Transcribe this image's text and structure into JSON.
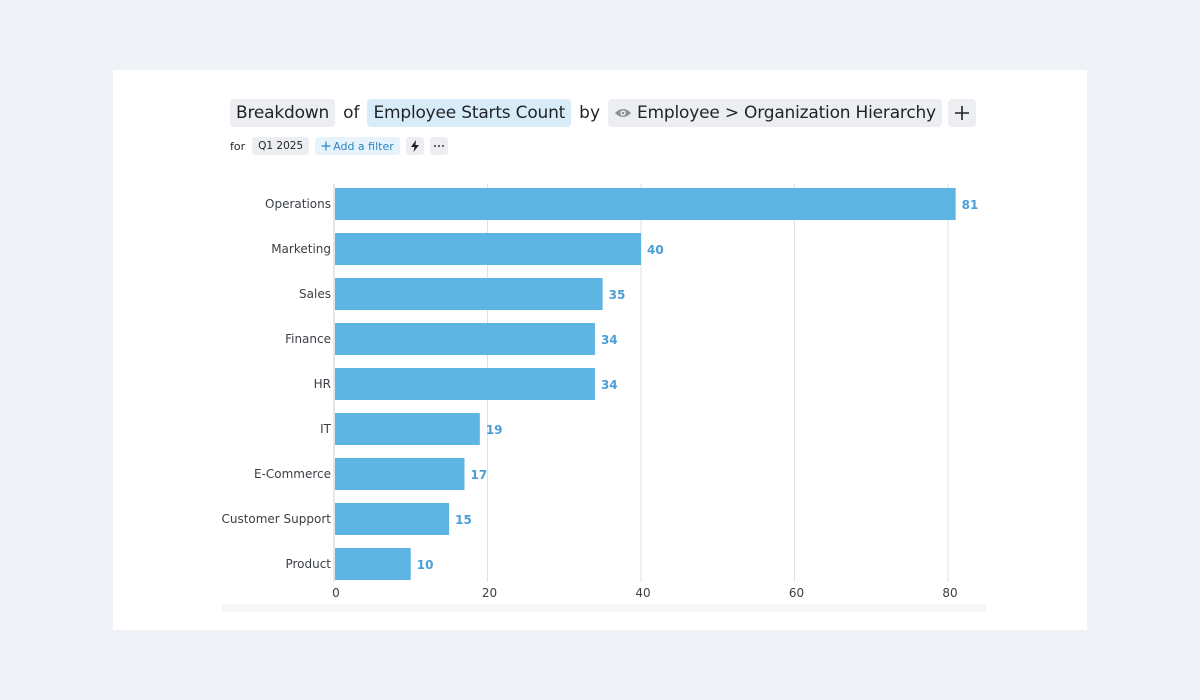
{
  "header": {
    "breakdown": "Breakdown",
    "of": "of",
    "measure": "Employee Starts Count",
    "by": "by",
    "dimension": "Employee > Organization Hierarchy",
    "add_icon": "plus-icon",
    "eye_icon": "eye-icon"
  },
  "filters": {
    "for": "for",
    "period": "Q1 2025",
    "add_filter": "Add a filter",
    "bolt_icon": "lightning-icon",
    "more_icon": "more-icon"
  },
  "colors": {
    "bar": "#5eb5e4",
    "value_label": "#4a9fd6",
    "grid": "#dde1e5",
    "background": "#eff3f7"
  },
  "chart_data": {
    "type": "bar",
    "orientation": "horizontal",
    "title": "Breakdown of Employee Starts Count by Employee > Organization Hierarchy",
    "categories": [
      "Operations",
      "Marketing",
      "Sales",
      "Finance",
      "HR",
      "IT",
      "E-Commerce",
      "Customer Support",
      "Product"
    ],
    "values": [
      81,
      40,
      35,
      34,
      34,
      19,
      17,
      15,
      10
    ],
    "xlim": [
      0,
      85
    ],
    "xticks": [
      0,
      20,
      40,
      60,
      80
    ],
    "grid": true,
    "xlabel": "",
    "ylabel": ""
  }
}
